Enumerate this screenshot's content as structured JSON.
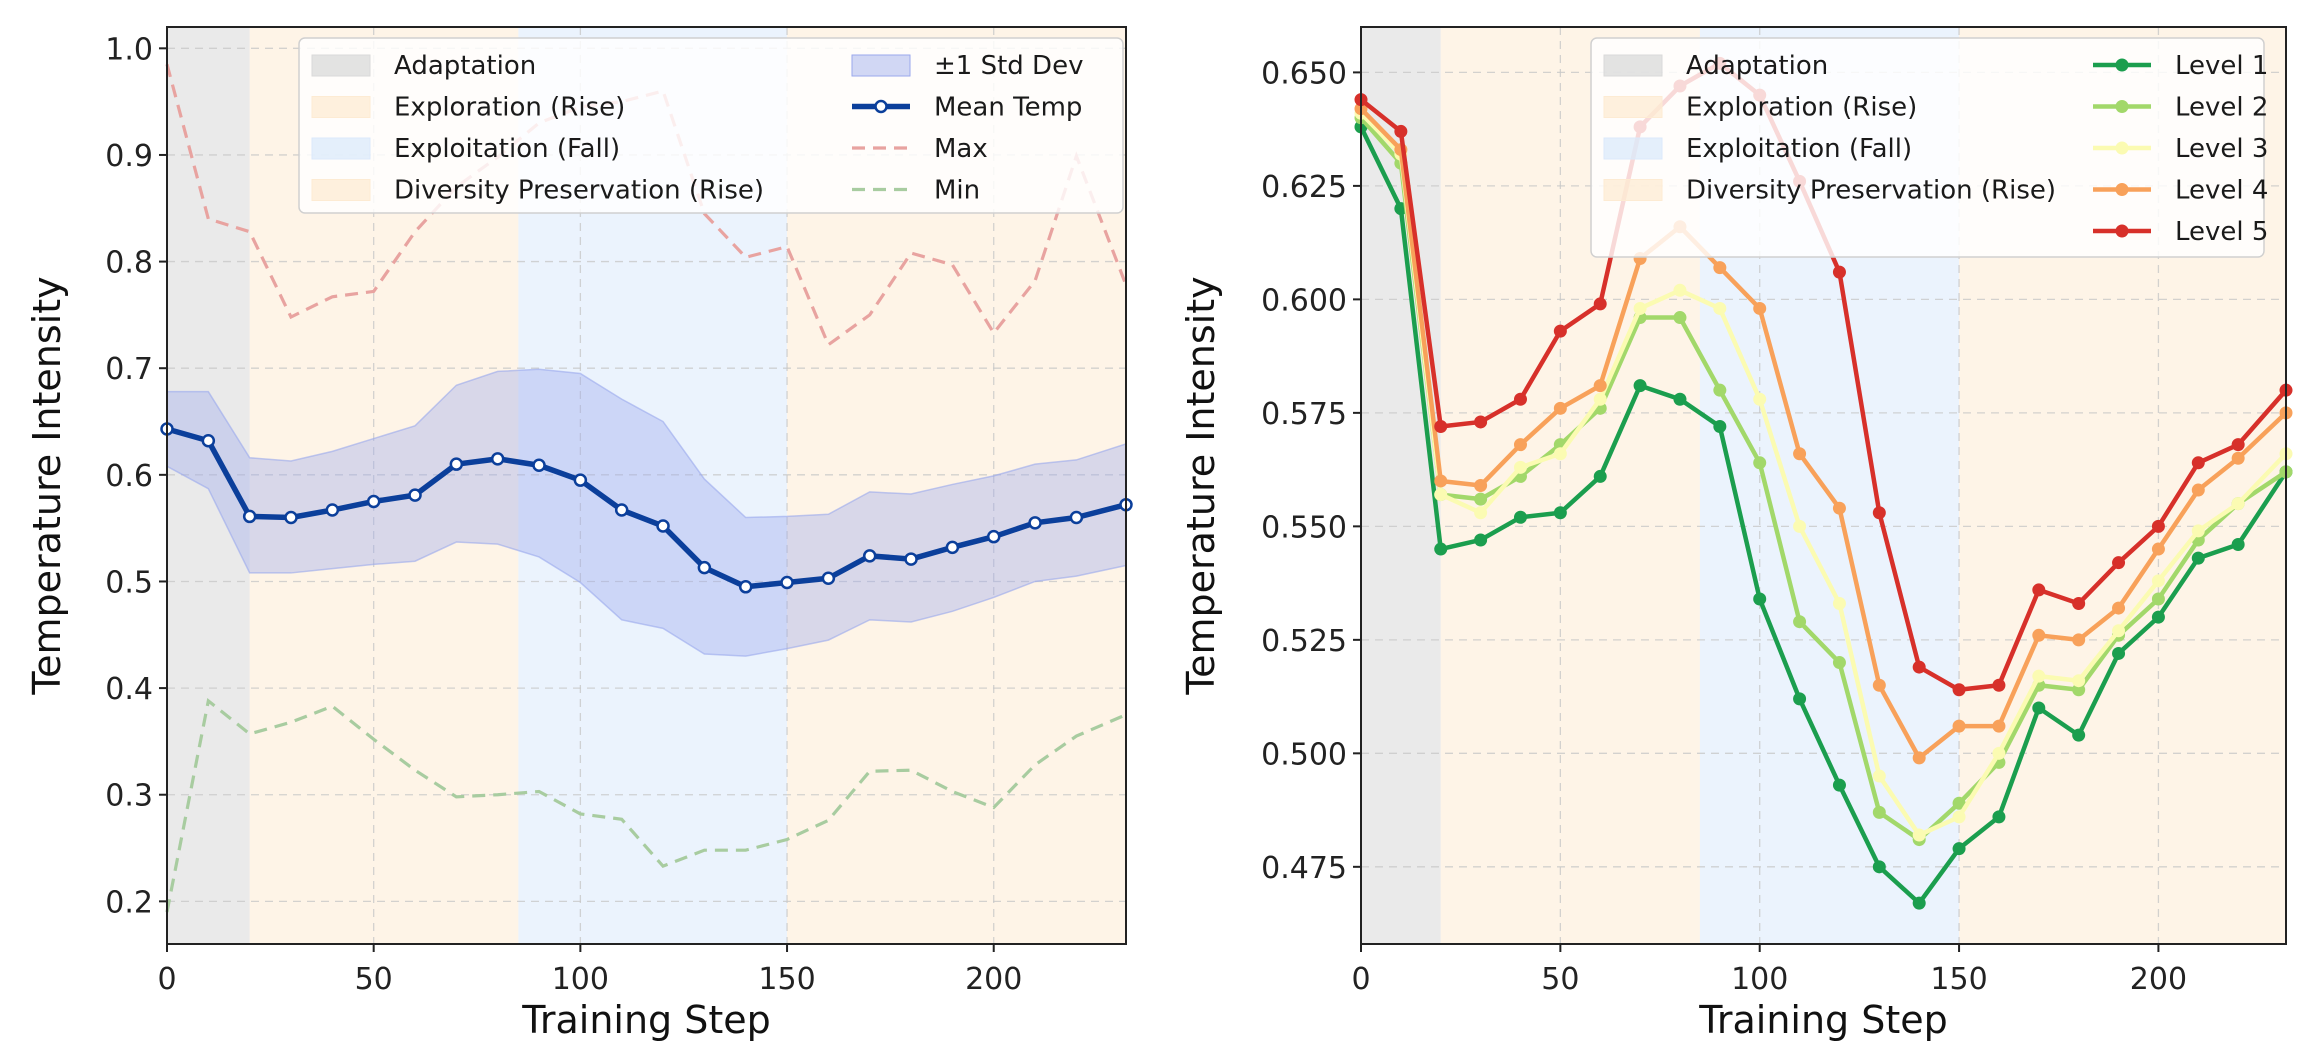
{
  "chart_data": [
    {
      "type": "line",
      "panel": "left",
      "xlabel": "Training Step",
      "ylabel": "Temperature Intensity",
      "xlim": [
        0,
        232
      ],
      "ylim": [
        0.16,
        1.02
      ],
      "xticks": [
        0,
        50,
        100,
        150,
        200
      ],
      "xtick_labels": [
        "0",
        "50",
        "100",
        "150",
        "200"
      ],
      "yticks": [
        0.2,
        0.3,
        0.4,
        0.5,
        0.6,
        0.7,
        0.8,
        0.9,
        1.0
      ],
      "ytick_labels": [
        "0.2",
        "0.3",
        "0.4",
        "0.5",
        "0.6",
        "0.7",
        "0.8",
        "0.9",
        "1.0"
      ],
      "grid": true,
      "phases": [
        {
          "label": "Adaptation",
          "start": 0,
          "end": 20,
          "color": "#d9d9d9"
        },
        {
          "label": "Exploration (Rise)",
          "start": 20,
          "end": 85,
          "color": "#fdebd3"
        },
        {
          "label": "Exploitation (Fall)",
          "start": 85,
          "end": 150,
          "color": "#dbe9fb"
        },
        {
          "label": "Diversity Preservation (Rise)",
          "start": 150,
          "end": 232,
          "color": "#fdebd3"
        }
      ],
      "x": [
        0,
        10,
        20,
        30,
        40,
        50,
        60,
        70,
        80,
        90,
        100,
        110,
        120,
        130,
        140,
        150,
        160,
        170,
        180,
        190,
        200,
        210,
        220,
        232
      ],
      "series": [
        {
          "name": "Mean Temp",
          "kind": "line-marker",
          "color": "#0b3f9b",
          "values": [
            0.643,
            0.632,
            0.561,
            0.56,
            0.567,
            0.575,
            0.581,
            0.61,
            0.615,
            0.609,
            0.595,
            0.567,
            0.552,
            0.513,
            0.495,
            0.499,
            0.503,
            0.524,
            0.521,
            0.532,
            0.542,
            0.555,
            0.56,
            0.572
          ]
        },
        {
          "name": "±1 Std Dev",
          "kind": "band",
          "color": "#9aa8ec",
          "upper": [
            0.678,
            0.678,
            0.616,
            0.613,
            0.622,
            0.634,
            0.646,
            0.684,
            0.697,
            0.699,
            0.695,
            0.671,
            0.65,
            0.596,
            0.56,
            0.561,
            0.563,
            0.584,
            0.582,
            0.591,
            0.599,
            0.61,
            0.614,
            0.629
          ],
          "lower": [
            0.608,
            0.587,
            0.508,
            0.508,
            0.512,
            0.516,
            0.519,
            0.537,
            0.535,
            0.523,
            0.499,
            0.464,
            0.456,
            0.432,
            0.43,
            0.437,
            0.445,
            0.464,
            0.462,
            0.472,
            0.485,
            0.5,
            0.505,
            0.515
          ]
        },
        {
          "name": "Max",
          "kind": "dashed",
          "color": "#e8a3a0",
          "values": [
            0.985,
            0.84,
            0.828,
            0.748,
            0.767,
            0.772,
            0.828,
            0.87,
            0.898,
            0.93,
            0.945,
            0.95,
            0.96,
            0.845,
            0.804,
            0.814,
            0.722,
            0.75,
            0.808,
            0.797,
            0.733,
            0.782,
            0.899,
            0.778
          ]
        },
        {
          "name": "Min",
          "kind": "dashed",
          "color": "#a8cca0",
          "values": [
            0.19,
            0.388,
            0.357,
            0.368,
            0.383,
            0.352,
            0.323,
            0.298,
            0.3,
            0.303,
            0.282,
            0.277,
            0.233,
            0.248,
            0.248,
            0.258,
            0.276,
            0.322,
            0.323,
            0.303,
            0.288,
            0.328,
            0.355,
            0.375
          ]
        }
      ],
      "legend_phases": [
        "Adaptation",
        "Exploration (Rise)",
        "Exploitation (Fall)",
        "Diversity Preservation (Rise)"
      ],
      "legend_series": [
        "±1 Std Dev",
        "Mean Temp",
        "Max",
        "Min"
      ],
      "legend_position": "top-right"
    },
    {
      "type": "line",
      "panel": "right",
      "xlabel": "Training Step",
      "ylabel": "Temperature Intensity",
      "xlim": [
        0,
        232
      ],
      "ylim": [
        0.458,
        0.66
      ],
      "xticks": [
        0,
        50,
        100,
        150,
        200
      ],
      "xtick_labels": [
        "0",
        "50",
        "100",
        "150",
        "200"
      ],
      "yticks": [
        0.475,
        0.5,
        0.525,
        0.55,
        0.575,
        0.6,
        0.625,
        0.65
      ],
      "ytick_labels": [
        "0.475",
        "0.500",
        "0.525",
        "0.550",
        "0.575",
        "0.600",
        "0.625",
        "0.650"
      ],
      "grid": true,
      "phases": [
        {
          "label": "Adaptation",
          "start": 0,
          "end": 20,
          "color": "#d9d9d9"
        },
        {
          "label": "Exploration (Rise)",
          "start": 20,
          "end": 85,
          "color": "#fdebd3"
        },
        {
          "label": "Exploitation (Fall)",
          "start": 85,
          "end": 150,
          "color": "#dbe9fb"
        },
        {
          "label": "Diversity Preservation (Rise)",
          "start": 150,
          "end": 232,
          "color": "#fdebd3"
        }
      ],
      "x": [
        0,
        10,
        20,
        30,
        40,
        50,
        60,
        70,
        80,
        90,
        100,
        110,
        120,
        130,
        140,
        150,
        160,
        170,
        180,
        190,
        200,
        210,
        220,
        232
      ],
      "series": [
        {
          "name": "Level 1",
          "color": "#1b9e4e",
          "values": [
            0.638,
            0.62,
            0.545,
            0.547,
            0.552,
            0.553,
            0.561,
            0.581,
            0.578,
            0.572,
            0.534,
            0.512,
            0.493,
            0.475,
            0.467,
            0.479,
            0.486,
            0.51,
            0.504,
            0.522,
            0.53,
            0.543,
            0.546,
            0.562
          ]
        },
        {
          "name": "Level 2",
          "color": "#a2d86a",
          "values": [
            0.64,
            0.63,
            0.557,
            0.556,
            0.561,
            0.568,
            0.576,
            0.596,
            0.596,
            0.58,
            0.564,
            0.529,
            0.52,
            0.487,
            0.481,
            0.489,
            0.498,
            0.515,
            0.514,
            0.526,
            0.534,
            0.547,
            0.555,
            0.562
          ]
        },
        {
          "name": "Level 3",
          "color": "#fbfbb2",
          "values": [
            0.641,
            0.632,
            0.557,
            0.553,
            0.563,
            0.566,
            0.578,
            0.598,
            0.602,
            0.598,
            0.578,
            0.55,
            0.533,
            0.495,
            0.482,
            0.486,
            0.5,
            0.517,
            0.516,
            0.527,
            0.538,
            0.549,
            0.555,
            0.566
          ]
        },
        {
          "name": "Level 4",
          "color": "#f8a15a",
          "values": [
            0.642,
            0.633,
            0.56,
            0.559,
            0.568,
            0.576,
            0.581,
            0.609,
            0.616,
            0.607,
            0.598,
            0.566,
            0.554,
            0.515,
            0.499,
            0.506,
            0.506,
            0.526,
            0.525,
            0.532,
            0.545,
            0.558,
            0.565,
            0.575
          ]
        },
        {
          "name": "Level 5",
          "color": "#d7302a",
          "values": [
            0.644,
            0.637,
            0.572,
            0.573,
            0.578,
            0.593,
            0.599,
            0.638,
            0.647,
            0.652,
            0.645,
            0.626,
            0.606,
            0.553,
            0.519,
            0.514,
            0.515,
            0.536,
            0.533,
            0.542,
            0.55,
            0.564,
            0.568,
            0.58
          ]
        }
      ],
      "legend_phases": [
        "Adaptation",
        "Exploration (Rise)",
        "Exploitation (Fall)",
        "Diversity Preservation (Rise)"
      ],
      "legend_series": [
        "Level 1",
        "Level 2",
        "Level 3",
        "Level 4",
        "Level 5"
      ],
      "legend_position": "top-right"
    }
  ]
}
